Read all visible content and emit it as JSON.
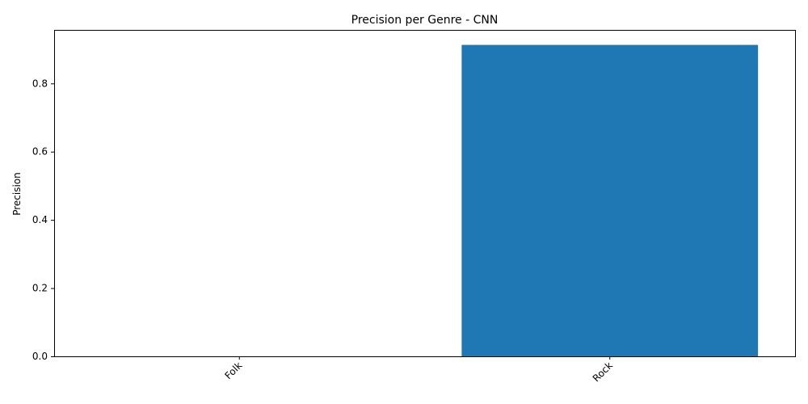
{
  "chart_data": {
    "type": "bar",
    "title": "Precision per Genre - CNN",
    "xlabel": "",
    "ylabel": "Precision",
    "categories": [
      "Folk",
      "Rock"
    ],
    "values": [
      0.0,
      0.913
    ],
    "ylim": [
      0,
      0.957
    ],
    "yticks": [
      0.0,
      0.2,
      0.4,
      0.6,
      0.8
    ],
    "ytick_labels": [
      "0.0",
      "0.2",
      "0.4",
      "0.6",
      "0.8"
    ],
    "grid": false,
    "bar_color": "#1f77b4"
  }
}
